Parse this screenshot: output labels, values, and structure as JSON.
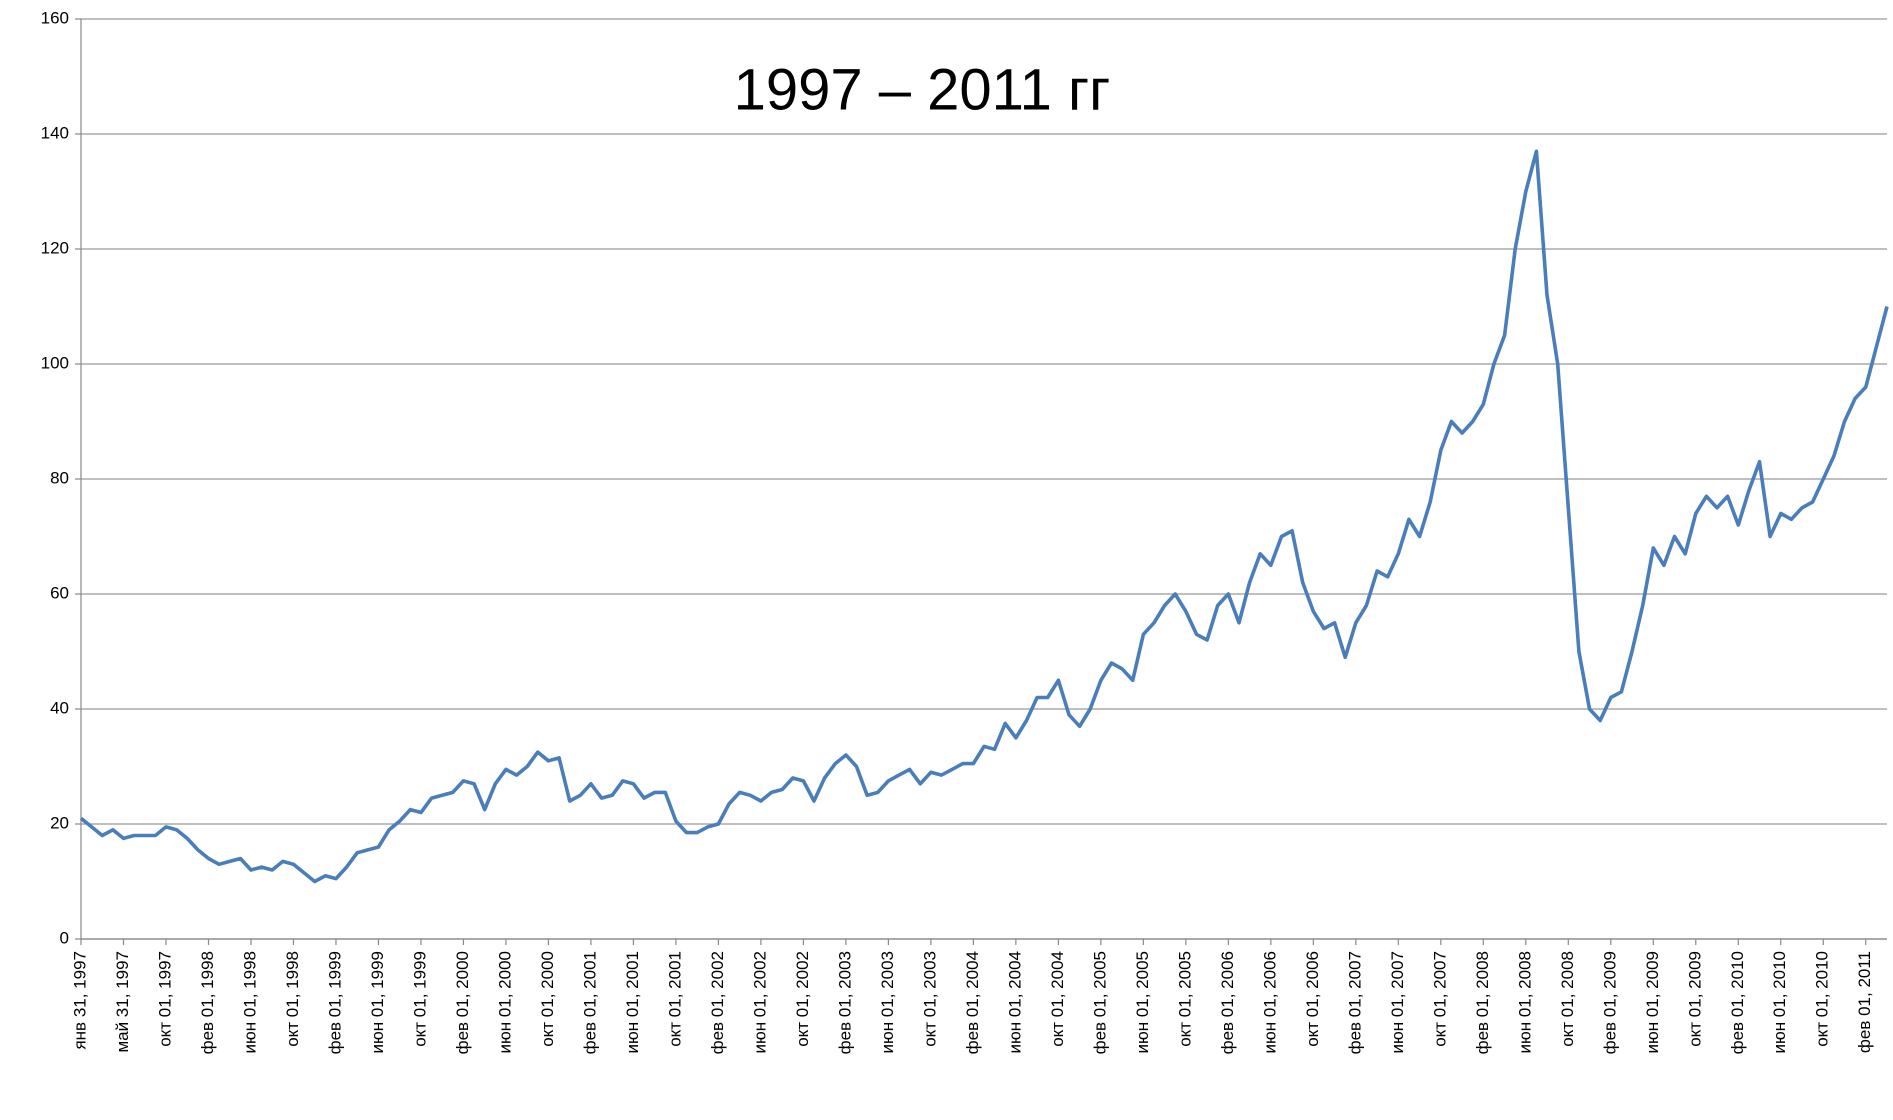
{
  "chart_data": {
    "type": "line",
    "title": "1997 – 2011 гг",
    "categories": [
      "янв 31, 1997",
      null,
      null,
      null,
      "май 31, 1997",
      null,
      null,
      null,
      "окт 01, 1997",
      null,
      null,
      null,
      "фев 01, 1998",
      null,
      null,
      null,
      "июн 01, 1998",
      null,
      null,
      null,
      "окт 01, 1998",
      null,
      null,
      null,
      "фев 01, 1999",
      null,
      null,
      null,
      "июн 01, 1999",
      null,
      null,
      null,
      "окт 01, 1999",
      null,
      null,
      null,
      "фев 01, 2000",
      null,
      null,
      null,
      "июн 01, 2000",
      null,
      null,
      null,
      "окт 01, 2000",
      null,
      null,
      null,
      "фев 01, 2001",
      null,
      null,
      null,
      "июн 01, 2001",
      null,
      null,
      null,
      "окт 01, 2001",
      null,
      null,
      null,
      "фев 01, 2002",
      null,
      null,
      null,
      "июн 01, 2002",
      null,
      null,
      null,
      "окт 01, 2002",
      null,
      null,
      null,
      "фев 01, 2003",
      null,
      null,
      null,
      "июн 01, 2003",
      null,
      null,
      null,
      "окт 01, 2003",
      null,
      null,
      null,
      "фев 01, 2004",
      null,
      null,
      null,
      "июн 01, 2004",
      null,
      null,
      null,
      "окт 01, 2004",
      null,
      null,
      null,
      "фев 01, 2005",
      null,
      null,
      null,
      "июн 01, 2005",
      null,
      null,
      null,
      "окт 01, 2005",
      null,
      null,
      null,
      "фев 01, 2006",
      null,
      null,
      null,
      "июн 01, 2006",
      null,
      null,
      null,
      "окт 01, 2006",
      null,
      null,
      null,
      "фев 01, 2007",
      null,
      null,
      null,
      "июн 01, 2007",
      null,
      null,
      null,
      "окт 01, 2007",
      null,
      null,
      null,
      "фев 01, 2008",
      null,
      null,
      null,
      "июн 01, 2008",
      null,
      null,
      null,
      "окт 01, 2008",
      null,
      null,
      null,
      "фев 01, 2009",
      null,
      null,
      null,
      "июн 01, 2009",
      null,
      null,
      null,
      "окт 01, 2009",
      null,
      null,
      null,
      "фев 01, 2010",
      null,
      null,
      null,
      "июн 01, 2010",
      null,
      null,
      null,
      "окт 01, 2010",
      null,
      null,
      null,
      "фев 01, 2011",
      null,
      null
    ],
    "series": [
      {
        "name": null,
        "color": "#4a7ebb",
        "values": [
          21,
          19.5,
          18,
          19,
          17.5,
          18,
          18,
          18,
          19.5,
          19,
          17.5,
          15.5,
          14,
          13,
          13.5,
          14,
          12,
          12.5,
          12,
          13.5,
          13,
          11.5,
          10,
          11,
          10.5,
          12.5,
          15,
          15.5,
          16,
          19,
          20.5,
          22.5,
          22,
          24.5,
          25,
          25.5,
          27.5,
          27,
          22.5,
          27,
          29.5,
          28.5,
          30,
          32.5,
          31,
          31.5,
          24,
          25,
          27,
          24.5,
          25,
          27.5,
          27,
          24.5,
          25.5,
          25.5,
          20.5,
          18.5,
          18.5,
          19.5,
          20,
          23.5,
          25.5,
          25,
          24,
          25.5,
          26,
          28,
          27.5,
          24,
          28,
          30.5,
          32,
          30,
          25,
          25.5,
          27.5,
          28.5,
          29.5,
          27,
          29,
          28.5,
          29.5,
          30.5,
          30.5,
          33.5,
          33,
          37.5,
          35,
          38,
          42,
          42,
          45,
          39,
          37,
          40,
          45,
          48,
          47,
          45,
          53,
          55,
          58,
          60,
          57,
          53,
          52,
          58,
          60,
          55,
          62,
          67,
          65,
          70,
          71,
          62,
          57,
          54,
          55,
          49,
          55,
          58,
          64,
          63,
          67,
          73,
          70,
          76,
          85,
          90,
          88,
          90,
          93,
          100,
          105,
          120,
          130,
          137,
          112,
          100,
          75,
          50,
          40,
          38,
          42,
          43,
          50,
          58,
          68,
          65,
          70,
          67,
          74,
          77,
          75,
          77,
          72,
          78,
          83,
          70,
          74,
          73,
          75,
          76,
          80,
          84,
          90,
          94,
          96,
          103,
          110
        ]
      }
    ],
    "ylim": [
      0,
      160
    ],
    "yticks": [
      0,
      20,
      40,
      60,
      80,
      100,
      120,
      140,
      160
    ],
    "grid": true
  }
}
